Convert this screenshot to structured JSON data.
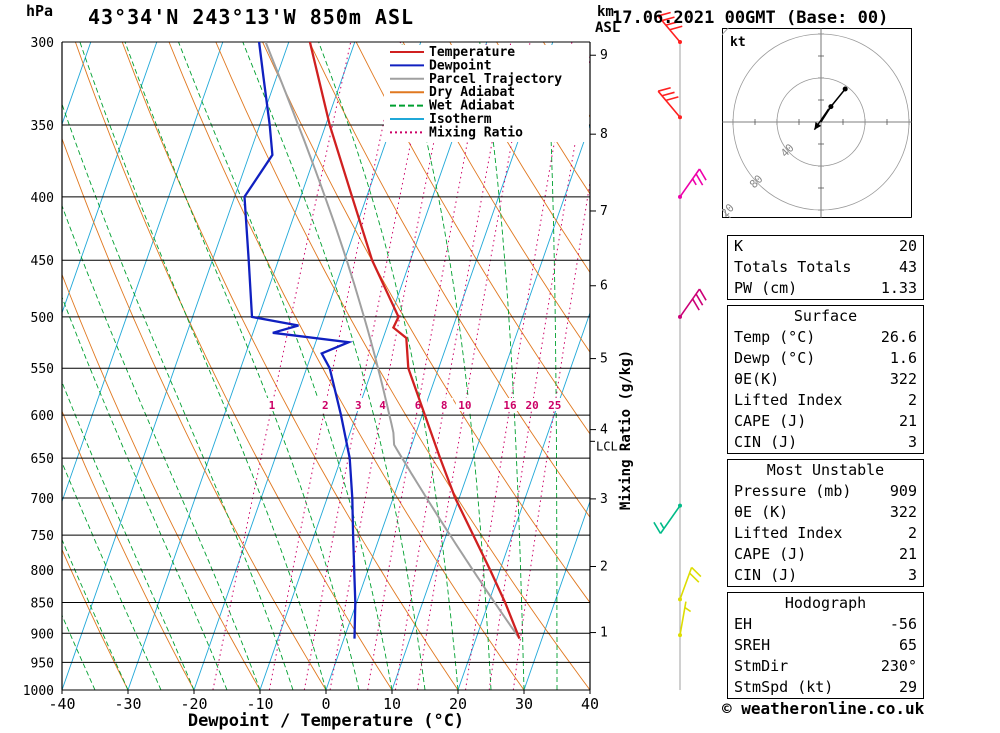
{
  "header": {
    "title": "43°34'N 243°13'W 850m ASL",
    "datetime": "17.06.2021 00GMT (Base: 00)"
  },
  "footer": {
    "copyright": "© weatheronline.co.uk"
  },
  "chart_data": {
    "type": "skewt_log_p_sounding",
    "axes": {
      "pressure_label": "hPa",
      "pressure_ticks": [
        300,
        350,
        400,
        450,
        500,
        550,
        600,
        650,
        700,
        750,
        800,
        850,
        900,
        950,
        1000
      ],
      "temp_ticks": [
        -40,
        -30,
        -20,
        -10,
        0,
        10,
        20,
        30,
        40
      ],
      "xlabel": "Dewpoint / Temperature (°C)",
      "pressure_range": [
        300,
        1000
      ],
      "temp_range": [
        -40,
        40
      ]
    },
    "km_axis": {
      "title_line1": "km",
      "title_line2": "ASL",
      "labels": [
        1,
        2,
        3,
        4,
        5,
        6,
        7,
        8,
        9
      ]
    },
    "mixing_ratio": {
      "axis_title": "Mixing Ratio (g/kg)",
      "values": [
        1,
        2,
        3,
        4,
        6,
        8,
        10,
        16,
        20,
        25
      ],
      "label_pressure": 590
    },
    "lcl": {
      "label": "LCL",
      "pressure": 630
    },
    "temperature_profile": {
      "pressure": [
        909,
        850,
        800,
        750,
        700,
        650,
        600,
        550,
        520,
        510,
        500,
        450,
        400,
        350,
        300
      ],
      "temp_c": [
        26.6,
        22.5,
        18.5,
        14.1,
        9.4,
        5.0,
        0.4,
        -4.6,
        -6.5,
        -9.0,
        -8.8,
        -15.8,
        -22.2,
        -29.4,
        -36.8
      ]
    },
    "dewpoint_profile": {
      "pressure": [
        909,
        850,
        800,
        750,
        700,
        650,
        600,
        550,
        535,
        524,
        515,
        508,
        500,
        450,
        400,
        370,
        350,
        320,
        300
      ],
      "temp_c": [
        1.6,
        -0.2,
        -2.1,
        -4.1,
        -6.2,
        -8.7,
        -12.3,
        -16.5,
        -18.5,
        -15.0,
        -27.0,
        -23.5,
        -31.0,
        -34.5,
        -38.5,
        -36.5,
        -38.5,
        -42.0,
        -44.5
      ]
    },
    "parcel": {
      "surface_temp_c": 26.6,
      "surface_pressure": 909,
      "lcl_pressure": 630
    },
    "legend": [
      {
        "label": "Temperature",
        "color": "#d02020",
        "style": "solid"
      },
      {
        "label": "Dewpoint",
        "color": "#1020c0",
        "style": "solid"
      },
      {
        "label": "Parcel Trajectory",
        "color": "#a0a0a0",
        "style": "solid"
      },
      {
        "label": "Dry Adiabat",
        "color": "#e07820",
        "style": "solid"
      },
      {
        "label": "Wet Adiabat",
        "color": "#00a030",
        "style": "dashed"
      },
      {
        "label": "Isotherm",
        "color": "#20a8d8",
        "style": "solid"
      },
      {
        "label": "Mixing Ratio",
        "color": "#cc0066",
        "style": "dotted"
      }
    ],
    "wind_barbs": [
      {
        "pressure": 300,
        "speed_kt": 40,
        "angle_deg": -40,
        "color": "#ff2020"
      },
      {
        "pressure": 345,
        "speed_kt": 30,
        "angle_deg": -40,
        "color": "#ff2020"
      },
      {
        "pressure": 400,
        "speed_kt": 25,
        "angle_deg": 35,
        "color": "#ee00aa"
      },
      {
        "pressure": 500,
        "speed_kt": 30,
        "angle_deg": 35,
        "color": "#cc0077"
      },
      {
        "pressure": 710,
        "speed_kt": 15,
        "angle_deg": 215,
        "color": "#00bb88"
      },
      {
        "pressure": 845,
        "speed_kt": 20,
        "angle_deg": 20,
        "color": "#dddd00"
      },
      {
        "pressure": 903,
        "speed_kt": 5,
        "angle_deg": 10,
        "color": "#dddd00"
      }
    ],
    "colors": {
      "temperature": "#d02020",
      "dewpoint": "#1020c0",
      "parcel": "#a0a0a0",
      "dry_adiabat": "#e07820",
      "wet_adiabat": "#00a030",
      "isotherm": "#20a8d8",
      "mixing_ratio": "#cc0066",
      "grid": "#000000",
      "barb_column": "#b0b0b0"
    }
  },
  "hodograph": {
    "unit_label": "kt",
    "rings_kt": [
      40,
      80,
      120
    ],
    "trace_points_kt": [
      [
        0,
        0
      ],
      [
        9,
        14
      ],
      [
        22,
        30
      ]
    ],
    "dots_at": [
      1,
      2
    ],
    "storm_arrow_kt": {
      "from": [
        7,
        12
      ],
      "to": [
        -6,
        -7
      ]
    }
  },
  "tables": [
    {
      "rows": [
        [
          "K",
          "20"
        ],
        [
          "Totals Totals",
          "43"
        ],
        [
          "PW (cm)",
          "1.33"
        ]
      ]
    },
    {
      "title": "Surface",
      "rows": [
        [
          "Temp (°C)",
          "26.6"
        ],
        [
          "Dewp (°C)",
          "1.6"
        ],
        [
          "θE(K)",
          "322"
        ],
        [
          "Lifted Index",
          "2"
        ],
        [
          "CAPE (J)",
          "21"
        ],
        [
          "CIN (J)",
          "3"
        ]
      ]
    },
    {
      "title": "Most Unstable",
      "rows": [
        [
          "Pressure (mb)",
          "909"
        ],
        [
          "θE (K)",
          "322"
        ],
        [
          "Lifted Index",
          "2"
        ],
        [
          "CAPE (J)",
          "21"
        ],
        [
          "CIN (J)",
          "3"
        ]
      ]
    },
    {
      "title": "Hodograph",
      "rows": [
        [
          "EH",
          "-56"
        ],
        [
          "SREH",
          "65"
        ],
        [
          "StmDir",
          "230°"
        ],
        [
          "StmSpd (kt)",
          "29"
        ]
      ]
    }
  ]
}
